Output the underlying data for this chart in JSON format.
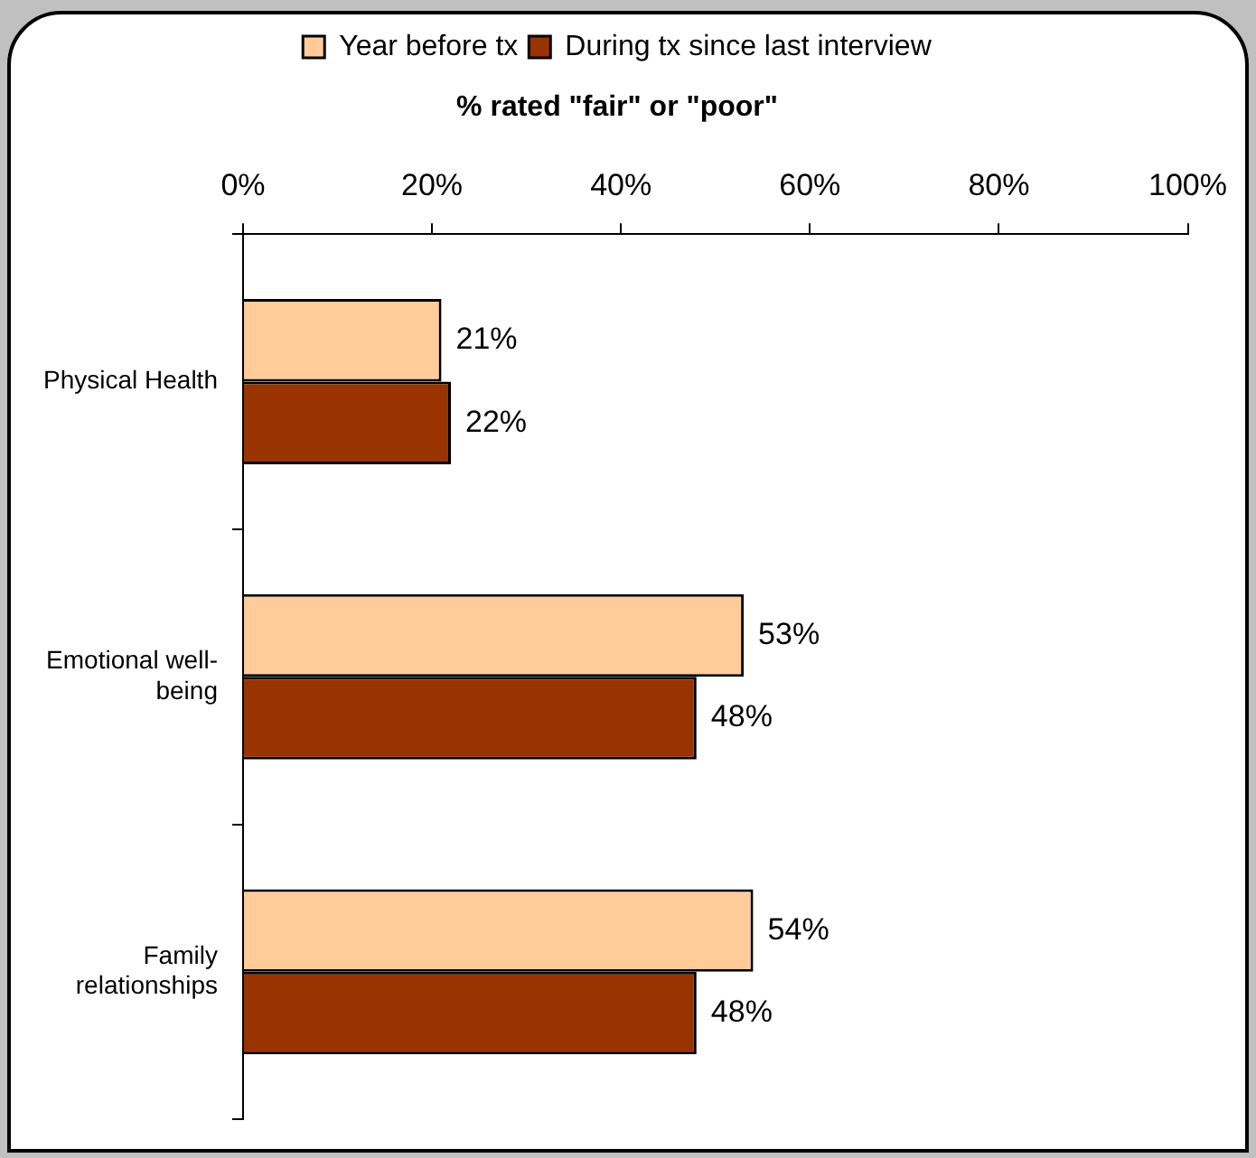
{
  "chart_data": {
    "type": "bar",
    "orientation": "horizontal",
    "title": "% rated \"fair\" or \"poor\"",
    "categories": [
      "Physical Health",
      "Emotional well-being",
      "Family relationships"
    ],
    "series": [
      {
        "name": "Year before tx",
        "color": "#ffcc99",
        "values": [
          21,
          53,
          54
        ],
        "value_labels": [
          "21%",
          "53%",
          "54%"
        ]
      },
      {
        "name": "During tx since last interview",
        "color": "#993300",
        "values": [
          22,
          48,
          48
        ],
        "value_labels": [
          "22%",
          "48%",
          "48%"
        ]
      }
    ],
    "xlim": [
      0,
      100
    ],
    "xticks": [
      {
        "value": 0,
        "label": "0%"
      },
      {
        "value": 20,
        "label": "20%"
      },
      {
        "value": 40,
        "label": "40%"
      },
      {
        "value": 60,
        "label": "60%"
      },
      {
        "value": 80,
        "label": "80%"
      },
      {
        "value": 100,
        "label": "100%"
      }
    ],
    "grid": false,
    "legend": "top"
  }
}
